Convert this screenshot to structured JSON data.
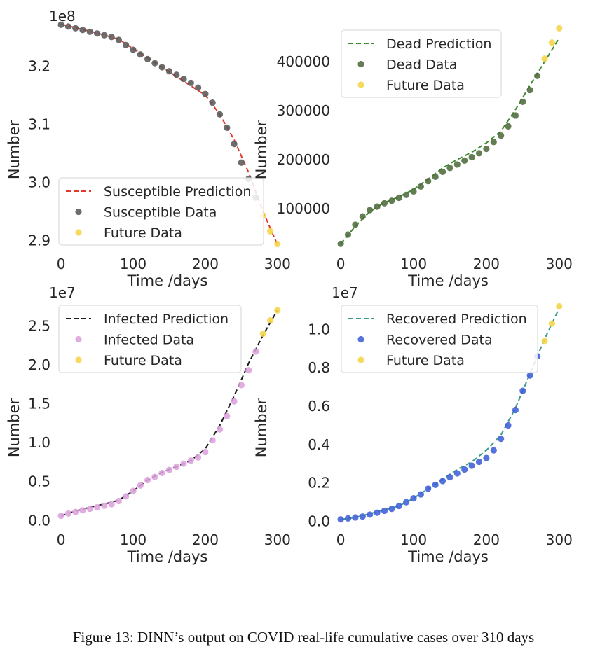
{
  "caption": "Figure 13: DINN’s output on COVID real-life cumulative cases over 310 days",
  "chart_data": [
    {
      "type": "line",
      "xlabel": "Time /days",
      "ylabel": "Number",
      "offset_text": "1e8",
      "xlim": [
        -3,
        306
      ],
      "ylim": [
        2.885,
        3.275
      ],
      "xticks": [
        0,
        100,
        200,
        300
      ],
      "xtick_labels": [
        "0",
        "100",
        "200",
        "300"
      ],
      "yticks": [
        2.9,
        3.0,
        3.1,
        3.2
      ],
      "ytick_labels": [
        "2.9",
        "3.0",
        "3.1",
        "3.2"
      ],
      "legend_position": "lower-left",
      "series": [
        {
          "name": "Susceptible Prediction",
          "kind": "dashed-line",
          "color": "#e03a2e",
          "x": [
            0,
            50,
            80,
            100,
            150,
            200,
            220,
            240,
            260,
            280,
            300
          ],
          "y": [
            3.272,
            3.257,
            3.246,
            3.23,
            3.19,
            3.15,
            3.117,
            3.073,
            3.017,
            2.95,
            2.893
          ]
        },
        {
          "name": "Susceptible Data",
          "kind": "markers",
          "color": "#595959",
          "x": [
            0,
            10,
            20,
            30,
            40,
            50,
            60,
            70,
            80,
            90,
            100,
            110,
            120,
            130,
            140,
            150,
            160,
            170,
            180,
            190,
            200,
            210,
            220,
            230,
            240,
            250,
            260,
            270
          ],
          "y": [
            3.271,
            3.268,
            3.265,
            3.262,
            3.259,
            3.256,
            3.253,
            3.25,
            3.245,
            3.236,
            3.228,
            3.22,
            3.212,
            3.205,
            3.198,
            3.191,
            3.185,
            3.178,
            3.171,
            3.163,
            3.152,
            3.137,
            3.117,
            3.094,
            3.066,
            3.034,
            3.006,
            2.974
          ]
        },
        {
          "name": "Future Data",
          "kind": "markers",
          "color": "#f5d547",
          "x": [
            280,
            290,
            300
          ],
          "y": [
            2.943,
            2.916,
            2.894
          ]
        }
      ]
    },
    {
      "type": "line",
      "xlabel": "Time /days",
      "ylabel": "Number",
      "offset_text": "",
      "xlim": [
        -3,
        306
      ],
      "ylim": [
        17000,
        480000
      ],
      "xticks": [
        0,
        100,
        200,
        300
      ],
      "xtick_labels": [
        "0",
        "100",
        "200",
        "300"
      ],
      "yticks": [
        100000,
        200000,
        300000,
        400000
      ],
      "ytick_labels": [
        "100000",
        "200000",
        "300000",
        "400000"
      ],
      "legend_position": "upper-left",
      "series": [
        {
          "name": "Dead Prediction",
          "kind": "dashed-line",
          "color": "#3c8a2e",
          "x": [
            0,
            20,
            40,
            60,
            80,
            100,
            120,
            140,
            160,
            180,
            200,
            220,
            240,
            260,
            280,
            300
          ],
          "y": [
            28000,
            64000,
            94000,
            112000,
            124000,
            139000,
            160000,
            183000,
            200000,
            215000,
            234000,
            258000,
            302000,
            352000,
            400000,
            448000
          ]
        },
        {
          "name": "Dead Data",
          "kind": "markers",
          "color": "#4f6b3e",
          "x": [
            0,
            10,
            20,
            30,
            40,
            50,
            60,
            70,
            80,
            90,
            100,
            110,
            120,
            130,
            140,
            150,
            160,
            170,
            180,
            190,
            200,
            210,
            220,
            230,
            240,
            250,
            260,
            270
          ],
          "y": [
            28000,
            47000,
            67000,
            84000,
            97000,
            104000,
            111000,
            116000,
            122000,
            128000,
            135000,
            145000,
            156000,
            165000,
            175000,
            183000,
            190000,
            198000,
            205000,
            213000,
            222000,
            236000,
            249000,
            268000,
            290000,
            318000,
            342000,
            371000
          ]
        },
        {
          "name": "Future Data",
          "kind": "markers",
          "color": "#f5d547",
          "x": [
            280,
            290,
            300
          ],
          "y": [
            406000,
            439000,
            468000
          ]
        }
      ]
    },
    {
      "type": "line",
      "xlabel": "Time /days",
      "ylabel": "Number",
      "offset_text": "1e7",
      "xlim": [
        -3,
        306
      ],
      "ylim": [
        -0.06,
        2.8
      ],
      "xticks": [
        0,
        100,
        200,
        300
      ],
      "xtick_labels": [
        "0",
        "100",
        "200",
        "300"
      ],
      "yticks": [
        0.0,
        0.5,
        1.0,
        1.5,
        2.0,
        2.5
      ],
      "ytick_labels": [
        "0.0",
        "0.5",
        "1.0",
        "1.5",
        "2.0",
        "2.5"
      ],
      "legend_position": "upper-left",
      "series": [
        {
          "name": "Infected Prediction",
          "kind": "dashed-line",
          "color": "#1a1a1a",
          "x": [
            0,
            20,
            40,
            60,
            80,
            100,
            120,
            140,
            160,
            180,
            200,
            220,
            240,
            260,
            280,
            300
          ],
          "y": [
            0.06,
            0.12,
            0.17,
            0.21,
            0.26,
            0.38,
            0.52,
            0.62,
            0.69,
            0.77,
            0.92,
            1.22,
            1.6,
            2.02,
            2.38,
            2.7
          ]
        },
        {
          "name": "Infected Data",
          "kind": "markers",
          "color": "#dda0dd",
          "x": [
            0,
            10,
            20,
            30,
            40,
            50,
            60,
            70,
            80,
            90,
            100,
            110,
            120,
            130,
            140,
            150,
            160,
            170,
            180,
            190,
            200,
            210,
            220,
            230,
            240,
            250,
            260,
            270
          ],
          "y": [
            0.06,
            0.09,
            0.11,
            0.13,
            0.15,
            0.17,
            0.19,
            0.21,
            0.25,
            0.31,
            0.38,
            0.45,
            0.52,
            0.56,
            0.61,
            0.65,
            0.69,
            0.73,
            0.77,
            0.81,
            0.88,
            1.03,
            1.17,
            1.34,
            1.53,
            1.74,
            1.93,
            2.17
          ]
        },
        {
          "name": "Future Data",
          "kind": "markers",
          "color": "#f5d547",
          "x": [
            280,
            290,
            300
          ],
          "y": [
            2.4,
            2.57,
            2.7
          ]
        }
      ]
    },
    {
      "type": "line",
      "xlabel": "Time /days",
      "ylabel": "Number",
      "offset_text": "1e7",
      "xlim": [
        -3,
        306
      ],
      "ylim": [
        -0.02,
        1.14
      ],
      "xticks": [
        0,
        100,
        200,
        300
      ],
      "xtick_labels": [
        "0",
        "100",
        "200",
        "300"
      ],
      "yticks": [
        0.0,
        0.2,
        0.4,
        0.6,
        0.8,
        1.0
      ],
      "ytick_labels": [
        "0.0",
        "0.2",
        "0.4",
        "0.6",
        "0.8",
        "1.0"
      ],
      "legend_position": "upper-left",
      "series": [
        {
          "name": "Recovered Prediction",
          "kind": "dashed-line",
          "color": "#3a9a8c",
          "x": [
            0,
            20,
            40,
            60,
            80,
            100,
            120,
            140,
            160,
            180,
            200,
            220,
            240,
            260,
            280,
            300
          ],
          "y": [
            0.01,
            0.02,
            0.04,
            0.06,
            0.08,
            0.12,
            0.17,
            0.22,
            0.27,
            0.31,
            0.37,
            0.45,
            0.59,
            0.77,
            0.95,
            1.11
          ]
        },
        {
          "name": "Recovered Data",
          "kind": "markers",
          "color": "#3f5fd8",
          "x": [
            0,
            10,
            20,
            30,
            40,
            50,
            60,
            70,
            80,
            90,
            100,
            110,
            120,
            130,
            140,
            150,
            160,
            170,
            180,
            190,
            200,
            210,
            220,
            230,
            240,
            250,
            260,
            270
          ],
          "y": [
            0.01,
            0.015,
            0.02,
            0.025,
            0.035,
            0.045,
            0.055,
            0.065,
            0.08,
            0.1,
            0.12,
            0.14,
            0.17,
            0.19,
            0.21,
            0.23,
            0.25,
            0.27,
            0.29,
            0.31,
            0.33,
            0.37,
            0.43,
            0.5,
            0.58,
            0.68,
            0.76,
            0.86
          ]
        },
        {
          "name": "Future Data",
          "kind": "markers",
          "color": "#f5d547",
          "x": [
            280,
            290,
            300
          ],
          "y": [
            0.94,
            1.03,
            1.12
          ]
        }
      ]
    }
  ]
}
